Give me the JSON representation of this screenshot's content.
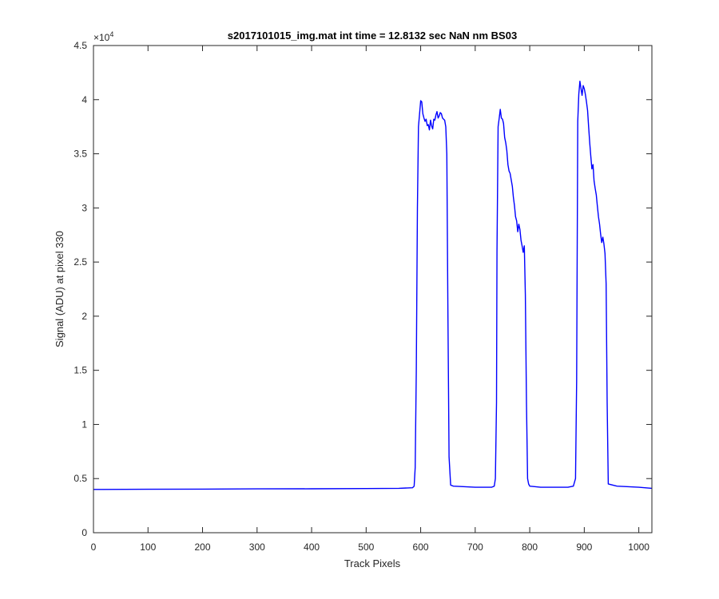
{
  "chart_data": {
    "type": "line",
    "title": "s2017101015_img.mat int time = 12.8132 sec  NaN nm BS03",
    "xlabel": "Track Pixels",
    "ylabel": "Signal (ADU) at pixel 330",
    "y_exponent_label": "×10",
    "y_exponent_power": "4",
    "xlim": [
      0,
      1024
    ],
    "ylim": [
      0,
      45000
    ],
    "x_ticks": [
      0,
      100,
      200,
      300,
      400,
      500,
      600,
      700,
      800,
      900,
      1000
    ],
    "x_tick_labels": [
      "0",
      "100",
      "200",
      "300",
      "400",
      "500",
      "600",
      "700",
      "800",
      "900",
      "1000"
    ],
    "y_ticks": [
      0,
      5000,
      10000,
      15000,
      20000,
      25000,
      30000,
      35000,
      40000,
      45000
    ],
    "y_tick_labels": [
      "0",
      "0.5",
      "1",
      "1.5",
      "2",
      "2.5",
      "3",
      "3.5",
      "4",
      "4.5"
    ],
    "grid": false,
    "color": "#0000ff",
    "series": [
      {
        "x": [
          0,
          100,
          200,
          300,
          400,
          500,
          560,
          585,
          588,
          590,
          592,
          594,
          596,
          598,
          600,
          602,
          604,
          606,
          608,
          610,
          612,
          614,
          616,
          618,
          620,
          622,
          624,
          626,
          628,
          630,
          632,
          634,
          636,
          638,
          640,
          642,
          644,
          646,
          648,
          650,
          652,
          655,
          660,
          700,
          730,
          735,
          737,
          739,
          740,
          742,
          744,
          746,
          748,
          750,
          752,
          754,
          756,
          758,
          760,
          762,
          764,
          766,
          768,
          770,
          772,
          774,
          776,
          778,
          780,
          782,
          784,
          786,
          788,
          790,
          792,
          794,
          796,
          798,
          800,
          820,
          870,
          880,
          884,
          886,
          888,
          890,
          892,
          894,
          896,
          898,
          900,
          902,
          904,
          906,
          908,
          910,
          912,
          914,
          916,
          918,
          920,
          922,
          924,
          926,
          928,
          930,
          932,
          934,
          936,
          938,
          940,
          942,
          944,
          960,
          1000,
          1024
        ],
        "y": [
          4000,
          4010,
          4030,
          4050,
          4060,
          4080,
          4100,
          4150,
          4300,
          6000,
          15000,
          30000,
          37500,
          38700,
          39900,
          39800,
          38700,
          38300,
          38000,
          38200,
          37600,
          37700,
          37200,
          38100,
          37600,
          37300,
          38200,
          38100,
          38600,
          38900,
          38300,
          38500,
          38800,
          38700,
          38300,
          38200,
          38100,
          37500,
          35000,
          20000,
          7000,
          4400,
          4300,
          4200,
          4200,
          4300,
          5000,
          12000,
          26000,
          37500,
          38300,
          39100,
          38300,
          38200,
          37800,
          36500,
          36000,
          35300,
          34000,
          33400,
          33200,
          32600,
          32000,
          31000,
          30200,
          29200,
          28800,
          27800,
          28500,
          28000,
          27000,
          26500,
          25900,
          26500,
          22000,
          12000,
          5000,
          4500,
          4300,
          4200,
          4200,
          4300,
          5000,
          14000,
          38000,
          40500,
          41700,
          41000,
          40400,
          41300,
          41000,
          40500,
          39800,
          39000,
          37500,
          36000,
          34800,
          33600,
          34000,
          32500,
          31800,
          31200,
          30200,
          29200,
          28500,
          27600,
          26800,
          27300,
          26700,
          25800,
          23000,
          12000,
          4500,
          4300,
          4200,
          4100
        ]
      }
    ]
  }
}
